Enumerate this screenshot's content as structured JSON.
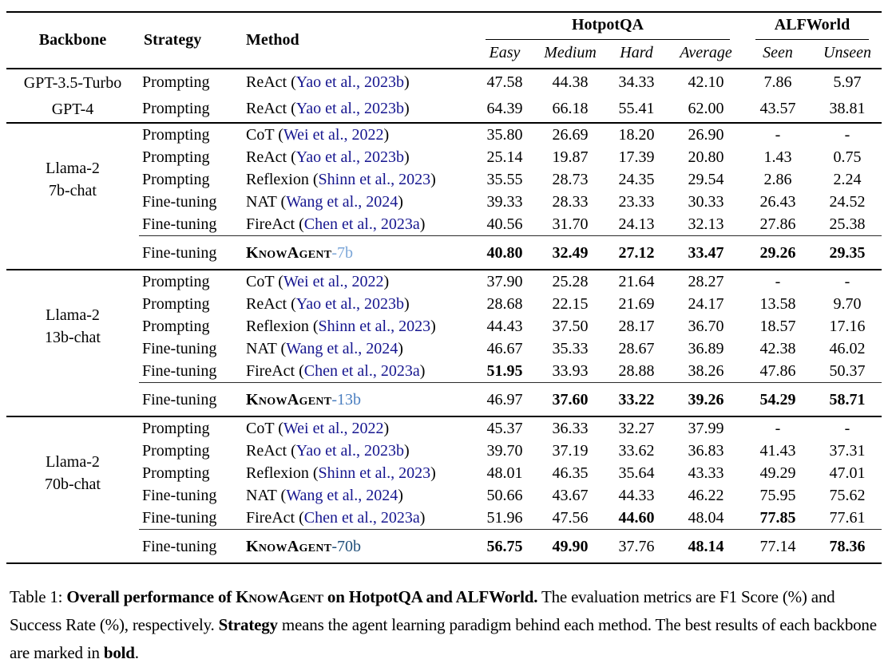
{
  "colors": {
    "citation": "#16168f",
    "ka_7b": "#7ba6d8",
    "ka_13b": "#4a7ec0",
    "ka_70b": "#1f4e79"
  },
  "table": {
    "columns": [
      "Backbone",
      "Strategy",
      "Method"
    ],
    "groups": [
      {
        "label": "HotpotQA",
        "sub": [
          "Easy",
          "Medium",
          "Hard",
          "Average"
        ]
      },
      {
        "label": "ALFWorld",
        "sub": [
          "Seen",
          "Unseen"
        ]
      }
    ],
    "sections": [
      {
        "rows": [
          {
            "backbone": "GPT-3.5-Turbo",
            "strategy": "Prompting",
            "method": "ReAct",
            "citation": "Yao et al., 2023b",
            "values": [
              "47.58",
              "44.38",
              "34.33",
              "42.10",
              "7.86",
              "5.97"
            ],
            "bold": [
              0,
              0,
              0,
              0,
              0,
              0
            ]
          },
          {
            "backbone": "GPT-4",
            "strategy": "Prompting",
            "method": "ReAct",
            "citation": "Yao et al., 2023b",
            "values": [
              "64.39",
              "66.18",
              "55.41",
              "62.00",
              "43.57",
              "38.81"
            ],
            "bold": [
              0,
              0,
              0,
              0,
              0,
              0
            ]
          }
        ]
      },
      {
        "backbone": [
          "Llama-2",
          "7b-chat"
        ],
        "rows": [
          {
            "strategy": "Prompting",
            "method": "CoT",
            "citation": "Wei et al., 2022",
            "values": [
              "35.80",
              "26.69",
              "18.20",
              "26.90",
              "-",
              "-"
            ],
            "bold": [
              0,
              0,
              0,
              0,
              0,
              0
            ]
          },
          {
            "strategy": "Prompting",
            "method": "ReAct",
            "citation": "Yao et al., 2023b",
            "values": [
              "25.14",
              "19.87",
              "17.39",
              "20.80",
              "1.43",
              "0.75"
            ],
            "bold": [
              0,
              0,
              0,
              0,
              0,
              0
            ]
          },
          {
            "strategy": "Prompting",
            "method": "Reflexion",
            "citation": "Shinn et al., 2023",
            "values": [
              "35.55",
              "28.73",
              "24.35",
              "29.54",
              "2.86",
              "2.24"
            ],
            "bold": [
              0,
              0,
              0,
              0,
              0,
              0
            ]
          },
          {
            "strategy": "Fine-tuning",
            "method": "NAT",
            "citation": "Wang et al., 2024",
            "values": [
              "39.33",
              "28.33",
              "23.33",
              "30.33",
              "26.43",
              "24.52"
            ],
            "bold": [
              0,
              0,
              0,
              0,
              0,
              0
            ]
          },
          {
            "strategy": "Fine-tuning",
            "method": "FireAct",
            "citation": "Chen et al., 2023a",
            "values": [
              "40.56",
              "31.70",
              "24.13",
              "32.13",
              "27.86",
              "25.38"
            ],
            "bold": [
              0,
              0,
              0,
              0,
              0,
              0
            ]
          }
        ],
        "knowagent": {
          "strategy": "Fine-tuning",
          "name": "KnowAgent",
          "suffix": "-7b",
          "suffix_color": "#7ba6d8",
          "values": [
            "40.80",
            "32.49",
            "27.12",
            "33.47",
            "29.26",
            "29.35"
          ],
          "bold": [
            1,
            1,
            1,
            1,
            1,
            1
          ]
        }
      },
      {
        "backbone": [
          "Llama-2",
          "13b-chat"
        ],
        "rows": [
          {
            "strategy": "Prompting",
            "method": "CoT",
            "citation": "Wei et al., 2022",
            "values": [
              "37.90",
              "25.28",
              "21.64",
              "28.27",
              "-",
              "-"
            ],
            "bold": [
              0,
              0,
              0,
              0,
              0,
              0
            ]
          },
          {
            "strategy": "Prompting",
            "method": "ReAct",
            "citation": "Yao et al., 2023b",
            "values": [
              "28.68",
              "22.15",
              "21.69",
              "24.17",
              "13.58",
              "9.70"
            ],
            "bold": [
              0,
              0,
              0,
              0,
              0,
              0
            ]
          },
          {
            "strategy": "Prompting",
            "method": "Reflexion",
            "citation": "Shinn et al., 2023",
            "values": [
              "44.43",
              "37.50",
              "28.17",
              "36.70",
              "18.57",
              "17.16"
            ],
            "bold": [
              0,
              0,
              0,
              0,
              0,
              0
            ]
          },
          {
            "strategy": "Fine-tuning",
            "method": "NAT",
            "citation": "Wang et al., 2024",
            "values": [
              "46.67",
              "35.33",
              "28.67",
              "36.89",
              "42.38",
              "46.02"
            ],
            "bold": [
              0,
              0,
              0,
              0,
              0,
              0
            ]
          },
          {
            "strategy": "Fine-tuning",
            "method": "FireAct",
            "citation": "Chen et al., 2023a",
            "values": [
              "51.95",
              "33.93",
              "28.88",
              "38.26",
              "47.86",
              "50.37"
            ],
            "bold": [
              1,
              0,
              0,
              0,
              0,
              0
            ]
          }
        ],
        "knowagent": {
          "strategy": "Fine-tuning",
          "name": "KnowAgent",
          "suffix": "-13b",
          "suffix_color": "#4a7ec0",
          "values": [
            "46.97",
            "37.60",
            "33.22",
            "39.26",
            "54.29",
            "58.71"
          ],
          "bold": [
            0,
            1,
            1,
            1,
            1,
            1
          ]
        }
      },
      {
        "backbone": [
          "Llama-2",
          "70b-chat"
        ],
        "rows": [
          {
            "strategy": "Prompting",
            "method": "CoT",
            "citation": "Wei et al., 2022",
            "values": [
              "45.37",
              "36.33",
              "32.27",
              "37.99",
              "-",
              "-"
            ],
            "bold": [
              0,
              0,
              0,
              0,
              0,
              0
            ]
          },
          {
            "strategy": "Prompting",
            "method": "ReAct",
            "citation": "Yao et al., 2023b",
            "values": [
              "39.70",
              "37.19",
              "33.62",
              "36.83",
              "41.43",
              "37.31"
            ],
            "bold": [
              0,
              0,
              0,
              0,
              0,
              0
            ]
          },
          {
            "strategy": "Prompting",
            "method": "Reflexion",
            "citation": "Shinn et al., 2023",
            "values": [
              "48.01",
              "46.35",
              "35.64",
              "43.33",
              "49.29",
              "47.01"
            ],
            "bold": [
              0,
              0,
              0,
              0,
              0,
              0
            ]
          },
          {
            "strategy": "Fine-tuning",
            "method": "NAT",
            "citation": "Wang et al., 2024",
            "values": [
              "50.66",
              "43.67",
              "44.33",
              "46.22",
              "75.95",
              "75.62"
            ],
            "bold": [
              0,
              0,
              0,
              0,
              0,
              0
            ]
          },
          {
            "strategy": "Fine-tuning",
            "method": "FireAct",
            "citation": "Chen et al., 2023a",
            "values": [
              "51.96",
              "47.56",
              "44.60",
              "48.04",
              "77.85",
              "77.61"
            ],
            "bold": [
              0,
              0,
              1,
              0,
              1,
              0
            ]
          }
        ],
        "knowagent": {
          "strategy": "Fine-tuning",
          "name": "KnowAgent",
          "suffix": "-70b",
          "suffix_color": "#1f4e79",
          "values": [
            "56.75",
            "49.90",
            "37.76",
            "48.14",
            "77.14",
            "78.36"
          ],
          "bold": [
            1,
            1,
            0,
            1,
            0,
            1
          ]
        }
      }
    ]
  },
  "caption": {
    "runs": [
      {
        "text": "Table 1: ",
        "bold": false,
        "smallcaps": false
      },
      {
        "text": "Overall performance of ",
        "bold": true,
        "smallcaps": false
      },
      {
        "text": "KnowAgent",
        "bold": true,
        "smallcaps": true
      },
      {
        "text": " on HotpotQA and ALFWorld.",
        "bold": true,
        "smallcaps": false
      },
      {
        "text": " The evaluation metrics are F1 Score (%) and Success Rate (%), respectively. ",
        "bold": false,
        "smallcaps": false
      },
      {
        "text": "Strategy",
        "bold": true,
        "smallcaps": false
      },
      {
        "text": " means the agent learning paradigm behind each method. The best results of each backbone are marked in ",
        "bold": false,
        "smallcaps": false
      },
      {
        "text": "bold",
        "bold": true,
        "smallcaps": false
      },
      {
        "text": ".",
        "bold": false,
        "smallcaps": false
      }
    ]
  }
}
